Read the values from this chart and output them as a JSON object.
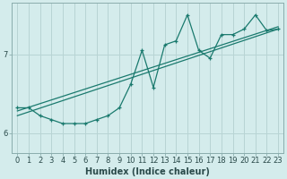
{
  "xlabel": "Humidex (Indice chaleur)",
  "ylabel": "",
  "bg_color": "#d4ecec",
  "line_color": "#1a7a6e",
  "grid_color": "#b8d4d4",
  "axis_color": "#8aadad",
  "xlim": [
    -0.5,
    23.5
  ],
  "ylim": [
    5.75,
    7.65
  ],
  "yticks": [
    6,
    7
  ],
  "xticks": [
    0,
    1,
    2,
    3,
    4,
    5,
    6,
    7,
    8,
    9,
    10,
    11,
    12,
    13,
    14,
    15,
    16,
    17,
    18,
    19,
    20,
    21,
    22,
    23
  ],
  "line1_x": [
    0,
    1,
    2,
    3,
    4,
    5,
    6,
    7,
    8,
    9,
    10,
    11,
    12,
    13,
    14,
    15,
    16,
    17,
    18,
    19,
    20,
    21,
    22,
    23
  ],
  "line1_y": [
    6.32,
    6.32,
    6.22,
    6.17,
    6.12,
    6.12,
    6.12,
    6.17,
    6.22,
    6.32,
    6.62,
    7.05,
    6.58,
    7.12,
    7.17,
    7.5,
    7.05,
    6.95,
    7.25,
    7.25,
    7.32,
    7.5,
    7.3,
    7.32
  ],
  "line2_x": [
    0,
    23
  ],
  "line2_y": [
    6.28,
    7.35
  ],
  "line3_x": [
    0,
    23
  ],
  "line3_y": [
    6.22,
    7.32
  ],
  "marker_size": 3.5,
  "font_size": 7,
  "tick_font_size": 6
}
